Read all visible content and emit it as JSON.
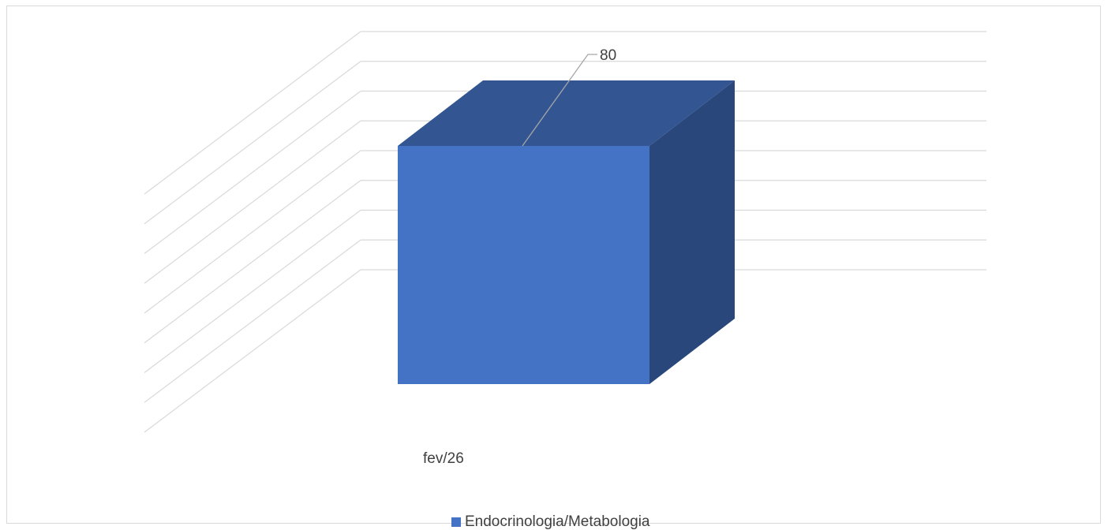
{
  "chart_data": {
    "type": "bar",
    "three_d": true,
    "categories": [
      "fev/26"
    ],
    "series": [
      {
        "name": "Endocrinologia/Metabologia",
        "values": [
          80
        ],
        "color": "#4472c4"
      }
    ],
    "data_labels": [
      "80"
    ],
    "gridlines": true,
    "legend_position": "bottom"
  },
  "colors": {
    "bar_front": "#4472c4",
    "bar_top": "#335693",
    "bar_side": "#2a477c",
    "gridline": "#d9d9d9",
    "text": "#404040",
    "leader_line": "#a6a6a6"
  }
}
